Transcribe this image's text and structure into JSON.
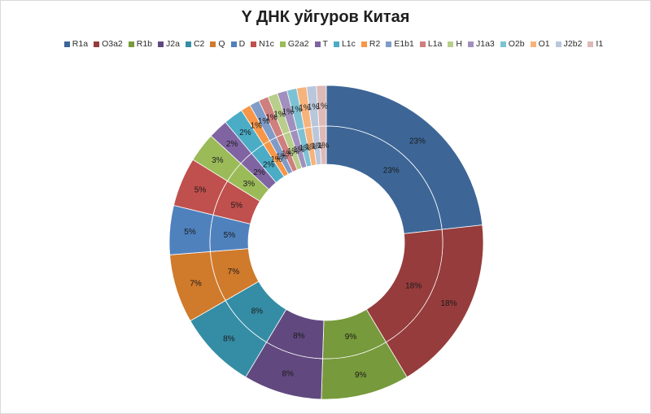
{
  "chart_data": {
    "type": "pie",
    "variant": "doughnut",
    "title": "Y ДНК уйгуров Китая",
    "legend_position": "top",
    "categories": [
      "R1a",
      "O3a2",
      "R1b",
      "J2a",
      "C2",
      "Q",
      "D",
      "N1c",
      "G2a2",
      "T",
      "L1c",
      "R2",
      "E1b1",
      "L1a",
      "H",
      "J1a3",
      "O2b",
      "O1",
      "J2b2",
      "I1"
    ],
    "colors": [
      "#3D6697",
      "#963C3C",
      "#779A3C",
      "#61497F",
      "#358DA5",
      "#D07A2C",
      "#4F81BD",
      "#C0504D",
      "#9BBB59",
      "#8064A2",
      "#4BACC6",
      "#F79646",
      "#7F9CC8",
      "#CF7F7D",
      "#B8CE8A",
      "#A190BD",
      "#7DC2D4",
      "#F7B37C",
      "#B9C7DD",
      "#DDB9B8"
    ],
    "series": [
      {
        "values": [
          23,
          18,
          9,
          8,
          8,
          7,
          5,
          5,
          3,
          2,
          2,
          1,
          1,
          1,
          1,
          1,
          1,
          1,
          1,
          1
        ],
        "labels": [
          "23%",
          "18%",
          "9%",
          "8%",
          "8%",
          "7%",
          "5%",
          "5%",
          "3%",
          "2%",
          "2%",
          "1%",
          "1%",
          "1%",
          "1%",
          "1%",
          "1%",
          "1%",
          "1%",
          "1%"
        ]
      },
      {
        "values": [
          23,
          18,
          9,
          8,
          8,
          7,
          5,
          5,
          3,
          2,
          2,
          1,
          1,
          1,
          1,
          1,
          1,
          1,
          1,
          1
        ],
        "labels": [
          "23%",
          "18%",
          "9%",
          "8%",
          "8%",
          "7%",
          "5%",
          "5%",
          "3%",
          "2%",
          "2%",
          "1%",
          "1%",
          "1%",
          "1%",
          "1%",
          "1%",
          "1%",
          "1%",
          "1%"
        ]
      }
    ]
  }
}
